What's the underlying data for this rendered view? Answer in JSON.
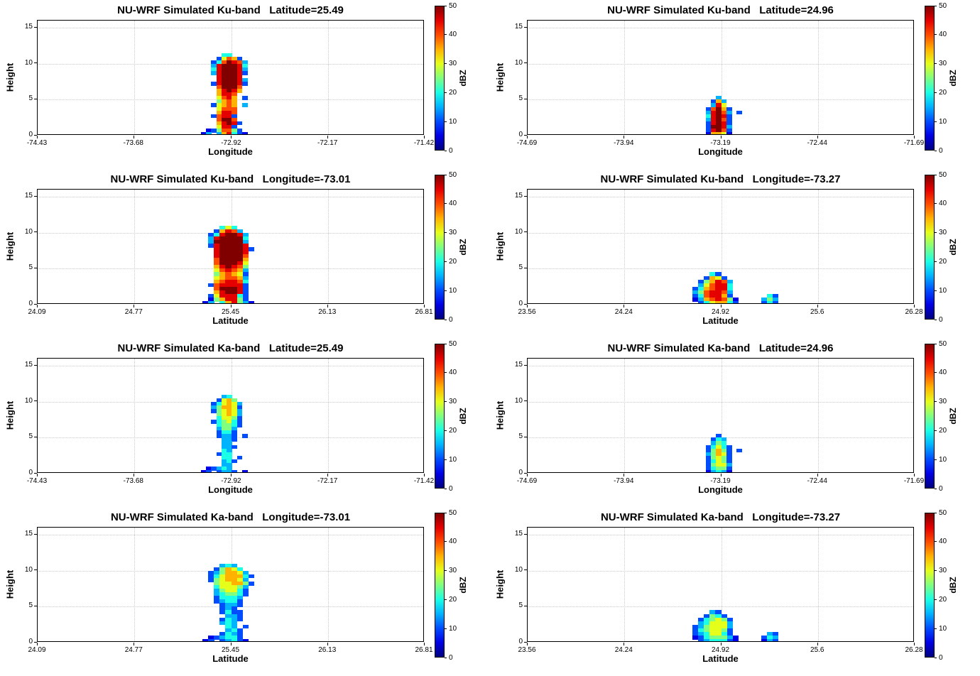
{
  "figure": {
    "background": "#ffffff",
    "grid_color": "#c9c9c9",
    "colormap": "jet"
  },
  "chart_data": [
    {
      "type": "heatmap",
      "title": "NU-WRF Simulated Ku-band   Latitude=25.49",
      "xlabel": "Longitude",
      "ylabel": "Height",
      "xlim": [
        -74.43,
        -71.42
      ],
      "ylim": [
        0,
        16
      ],
      "xtick_values": [
        -74.43,
        -73.68,
        -72.92,
        -72.17,
        -71.42
      ],
      "xticks": [
        "-74.43",
        "-73.68",
        "-72.92",
        "-72.17",
        "-71.42"
      ],
      "ytick_values": [
        0,
        5,
        10,
        15
      ],
      "yticks": [
        "0",
        "5",
        "10",
        "15"
      ],
      "grid": true,
      "colorbar": {
        "label": "dBZ",
        "min": 0,
        "max": 50,
        "ticks": [
          0,
          10,
          20,
          30,
          40,
          50
        ],
        "colormap": "jet"
      },
      "heatmap": {
        "units": "dBZ",
        "encoding": "per character: '.'=no echo, digits 1-9 => dBZ = 5*digit, 'A' => 50 dBZ",
        "x_start": -73.16,
        "dx": 0.04,
        "y_top": 11.5,
        "dy": 0.5,
        "rows": [
          "....44......",
          "...26872....",
          "..248A983...",
          "..39AAA94...",
          "..49AAA93...",
          "..39AAA92...",
          "...9AAA9....",
          "...9AAA93...",
          "..29AAA92...",
          "...8AAA8....",
          "...79A97....",
          "...7998.....",
          "...6897.2...",
          "...5787.....",
          "..26787.3...",
          "...6888.....",
          "...7998.....",
          "..28992.....",
          "...8AA8.....",
          "...79A92....",
          "...6992.....",
          ".1258852....",
          "13.379421..."
        ]
      }
    },
    {
      "type": "heatmap",
      "title": "NU-WRF Simulated Ku-band   Latitude=24.96",
      "xlabel": "Longitude",
      "ylabel": "Height",
      "xlim": [
        -74.69,
        -71.69
      ],
      "ylim": [
        0,
        16
      ],
      "xtick_values": [
        -74.69,
        -73.94,
        -73.19,
        -72.44,
        -71.69
      ],
      "xticks": [
        "-74.69",
        "-73.94",
        "-73.19",
        "-72.44",
        "-71.69"
      ],
      "ytick_values": [
        0,
        5,
        10,
        15
      ],
      "yticks": [
        "0",
        "5",
        "10",
        "15"
      ],
      "grid": true,
      "colorbar": {
        "label": "dBZ",
        "min": 0,
        "max": 50,
        "ticks": [
          0,
          10,
          20,
          30,
          40,
          50
        ],
        "colormap": "jet"
      },
      "heatmap": {
        "units": "dBZ",
        "encoding": "per character: '.'=no echo, digits 1-9 => dBZ = 5*digit, 'A' => 50 dBZ",
        "x_start": -73.35,
        "dx": 0.04,
        "y_top": 5.5,
        "dy": 0.5,
        "rows": [
          "...3....",
          "..273...",
          "..396...",
          ".28A72..",
          ".39A83.2",
          ".49A92..",
          ".39A82..",
          ".29A92..",
          ".2AA93..",
          ".29A82..",
          ".17761.."
        ]
      }
    },
    {
      "type": "heatmap",
      "title": "NU-WRF Simulated Ku-band   Longitude=-73.01",
      "xlabel": "Latitude",
      "ylabel": "Height",
      "xlim": [
        24.09,
        26.81
      ],
      "ylim": [
        0,
        16
      ],
      "xtick_values": [
        24.09,
        24.77,
        25.45,
        26.13,
        26.81
      ],
      "xticks": [
        "24.09",
        "24.77",
        "25.45",
        "26.13",
        "26.81"
      ],
      "ytick_values": [
        0,
        5,
        10,
        15
      ],
      "yticks": [
        "0",
        "5",
        "10",
        "15"
      ],
      "grid": true,
      "colorbar": {
        "label": "dBZ",
        "min": 0,
        "max": 50,
        "ticks": [
          0,
          10,
          20,
          30,
          40,
          50
        ],
        "colormap": "jet"
      },
      "heatmap": {
        "units": "dBZ",
        "encoding": "per character: '.'=no echo, digits 1-9 => dBZ = 5*digit, 'A' => 50 dBZ",
        "x_start": 25.25,
        "dx": 0.04,
        "y_top": 11.0,
        "dy": 0.5,
        "rows": [
          "...464....",
          "..27983...",
          ".249AA93..",
          ".39AAAA4..",
          ".3AAAAA3..",
          ".29AAAA9..",
          "..9AAAA92.",
          "..9AAAA9..",
          "..9AAAA8..",
          "..8AAAA7..",
          "..8AAA96..",
          "..79A985..",
          "..689873..",
          "..578762..",
          "..678873..",
          "..789984..",
          ".2899992..",
          "..8AAA92..",
          "..79AA92..",
          ".2699942..",
          ".1579952..",
          "13.479531."
        ]
      }
    },
    {
      "type": "heatmap",
      "title": "NU-WRF Simulated Ku-band   Longitude=-73.27",
      "xlabel": "Latitude",
      "ylabel": "Height",
      "xlim": [
        23.56,
        26.28
      ],
      "ylim": [
        0,
        16
      ],
      "xtick_values": [
        23.56,
        24.24,
        24.92,
        25.6,
        26.28
      ],
      "xticks": [
        "23.56",
        "24.24",
        "24.92",
        "25.6",
        "26.28"
      ],
      "ytick_values": [
        0,
        5,
        10,
        15
      ],
      "yticks": [
        "0",
        "5",
        "10",
        "15"
      ],
      "grid": true,
      "colorbar": {
        "label": "dBZ",
        "min": 0,
        "max": 50,
        "ticks": [
          0,
          10,
          20,
          30,
          40,
          50
        ],
        "colormap": "jet"
      },
      "heatmap": {
        "units": "dBZ",
        "encoding": "per character: '.'=no echo, digits 1-9 => dBZ = 5*digit, 'A' => 50 dBZ",
        "x_start": 24.68,
        "dx": 0.04,
        "y_top": 4.5,
        "dy": 0.5,
        "rows": [
          "....42..........",
          "...2762.........",
          "..257983........",
          "..368994........",
          ".2478994........",
          ".3589983........",
          ".2489972......42",
          ".13789851....353",
          "..2467742....242"
        ]
      }
    },
    {
      "type": "heatmap",
      "title": "NU-WRF Simulated Ka-band   Latitude=25.49",
      "xlabel": "Longitude",
      "ylabel": "Height",
      "xlim": [
        -74.43,
        -71.42
      ],
      "ylim": [
        0,
        16
      ],
      "xtick_values": [
        -74.43,
        -73.68,
        -72.92,
        -72.17,
        -71.42
      ],
      "xticks": [
        "-74.43",
        "-73.68",
        "-72.92",
        "-72.17",
        "-71.42"
      ],
      "ytick_values": [
        0,
        5,
        10,
        15
      ],
      "yticks": [
        "0",
        "5",
        "10",
        "15"
      ],
      "grid": true,
      "colorbar": {
        "label": "dBZ",
        "min": 0,
        "max": 50,
        "ticks": [
          0,
          10,
          20,
          30,
          40,
          50
        ],
        "colormap": "jet"
      },
      "heatmap": {
        "units": "dBZ",
        "encoding": "per character: '.'=no echo, digits 1-9 => dBZ = 5*digit, 'A' => 50 dBZ",
        "x_start": -73.16,
        "dx": 0.04,
        "y_top": 11.0,
        "dy": 0.5,
        "rows": [
          "....34......",
          "...2675.....",
          "..246763....",
          "..357762....",
          "..256763....",
          "...56763....",
          "...46652....",
          "..245642....",
          "...45542....",
          "...3553.....",
          "...2442.....",
          "...2332.2...",
          "....332.....",
          "....33......",
          "....332.....",
          "....43......",
          "...244......",
          "....44.2....",
          "....342.....",
          "....33......",
          ".12343......",
          "12.2332.1..."
        ]
      }
    },
    {
      "type": "heatmap",
      "title": "NU-WRF Simulated Ka-band   Latitude=24.96",
      "xlabel": "Longitude",
      "ylabel": "Height",
      "xlim": [
        -74.69,
        -71.69
      ],
      "ylim": [
        0,
        16
      ],
      "xtick_values": [
        -74.69,
        -73.94,
        -73.19,
        -72.44,
        -71.69
      ],
      "xticks": [
        "-74.69",
        "-73.94",
        "-73.19",
        "-72.44",
        "-71.69"
      ],
      "ytick_values": [
        0,
        5,
        10,
        15
      ],
      "yticks": [
        "0",
        "5",
        "10",
        "15"
      ],
      "grid": true,
      "colorbar": {
        "label": "dBZ",
        "min": 0,
        "max": 50,
        "ticks": [
          0,
          10,
          20,
          30,
          40,
          50
        ],
        "colormap": "jet"
      },
      "heatmap": {
        "units": "dBZ",
        "encoding": "per character: '.'=no echo, digits 1-9 => dBZ = 5*digit, 'A' => 50 dBZ",
        "x_start": -73.35,
        "dx": 0.04,
        "y_top": 5.5,
        "dy": 0.5,
        "rows": [
          "...2....",
          "..243...",
          "..354...",
          ".24642..",
          ".25752.2",
          ".35762..",
          ".25652..",
          ".24652..",
          ".25663..",
          ".24552..",
          ".13431.."
        ]
      }
    },
    {
      "type": "heatmap",
      "title": "NU-WRF Simulated Ka-band   Longitude=-73.01",
      "xlabel": "Latitude",
      "ylabel": "Height",
      "xlim": [
        24.09,
        26.81
      ],
      "ylim": [
        0,
        16
      ],
      "xtick_values": [
        24.09,
        24.77,
        25.45,
        26.13,
        26.81
      ],
      "xticks": [
        "24.09",
        "24.77",
        "25.45",
        "26.13",
        "26.81"
      ],
      "ytick_values": [
        0,
        5,
        10,
        15
      ],
      "yticks": [
        "0",
        "5",
        "10",
        "15"
      ],
      "grid": true,
      "colorbar": {
        "label": "dBZ",
        "min": 0,
        "max": 50,
        "ticks": [
          0,
          10,
          20,
          30,
          40,
          50
        ],
        "colormap": "jet"
      },
      "heatmap": {
        "units": "dBZ",
        "encoding": "per character: '.'=no echo, digits 1-9 => dBZ = 5*digit, 'A' => 50 dBZ",
        "x_start": 25.25,
        "dx": 0.04,
        "y_top": 11.0,
        "dy": 0.5,
        "rows": [
          "...343....",
          "..25764...",
          ".2357763..",
          ".24677742.",
          ".2567763..",
          "..5667752.",
          "..466653..",
          "..356642..",
          "..345542..",
          "..24443...",
          "..23442...",
          "...2332...",
          "...232....",
          "...2422...",
          "....332...",
          "...2432...",
          "...343....",
          "....43.2..",
          "....342...",
          "...2432...",
          ".123442...",
          "12.23421.."
        ]
      }
    },
    {
      "type": "heatmap",
      "title": "NU-WRF Simulated Ka-band   Longitude=-73.27",
      "xlabel": "Latitude",
      "ylabel": "Height",
      "xlim": [
        23.56,
        26.28
      ],
      "ylim": [
        0,
        16
      ],
      "xtick_values": [
        23.56,
        24.24,
        24.92,
        25.6,
        26.28
      ],
      "xticks": [
        "23.56",
        "24.24",
        "24.92",
        "25.6",
        "26.28"
      ],
      "ytick_values": [
        0,
        5,
        10,
        15
      ],
      "yticks": [
        "0",
        "5",
        "10",
        "15"
      ],
      "grid": true,
      "colorbar": {
        "label": "dBZ",
        "min": 0,
        "max": 50,
        "ticks": [
          0,
          10,
          20,
          30,
          40,
          50
        ],
        "colormap": "jet"
      },
      "heatmap": {
        "units": "dBZ",
        "encoding": "per character: '.'=no echo, digits 1-9 => dBZ = 5*digit, 'A' => 50 dBZ",
        "x_start": 24.68,
        "dx": 0.04,
        "y_top": 4.5,
        "dy": 0.5,
        "rows": [
          "....32..........",
          "...2542.........",
          "..245652........",
          "..346663........",
          ".2356663........",
          ".2456652........",
          ".2346642......32",
          ".12455531....243",
          "..2344421....132"
        ]
      }
    }
  ]
}
